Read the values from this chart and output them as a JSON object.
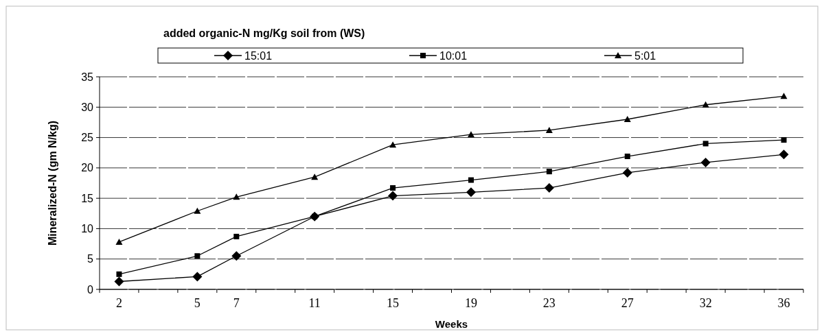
{
  "chart_data": {
    "type": "line",
    "xlabel": "Weeks",
    "ylabel": "Mineralized-N (gm N/kg)",
    "legend_title": "added organic-N mg/Kg soil from (WS)",
    "categories": [
      "2",
      null,
      "5",
      "7",
      null,
      "11",
      null,
      "15",
      null,
      "19",
      null,
      "23",
      null,
      "27",
      null,
      "32",
      null,
      "36"
    ],
    "series": [
      {
        "name": "15:01",
        "color": "#000000",
        "marker": "diamond",
        "values": [
          1.3,
          null,
          2.1,
          5.5,
          null,
          12,
          null,
          15.4,
          null,
          16,
          null,
          16.7,
          null,
          19.2,
          null,
          20.9,
          null,
          22.2
        ]
      },
      {
        "name": "10:01",
        "color": "#000000",
        "marker": "square",
        "values": [
          2.5,
          null,
          5.5,
          8.7,
          null,
          12,
          null,
          16.7,
          null,
          18,
          null,
          19.4,
          null,
          21.9,
          null,
          24,
          null,
          24.6
        ]
      },
      {
        "name": "5:01",
        "color": "#000000",
        "marker": "triangle",
        "values": [
          7.8,
          null,
          12.9,
          15.2,
          null,
          18.5,
          null,
          23.8,
          null,
          25.5,
          null,
          26.2,
          null,
          28,
          null,
          30.4,
          null,
          31.8
        ]
      }
    ],
    "ylim": [
      0,
      35
    ],
    "yticks": [
      0,
      5,
      10,
      15,
      20,
      25,
      30,
      35
    ],
    "grid": "y",
    "legend": "top",
    "line_style": "solid"
  }
}
